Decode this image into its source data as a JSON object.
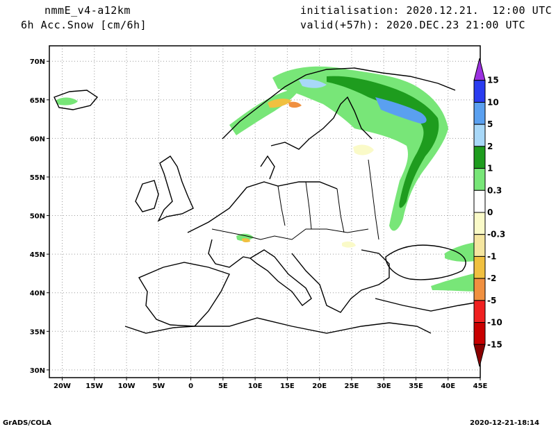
{
  "header": {
    "model": "nmmE_v4-a12km",
    "variable": "6h Acc.Snow [cm/6h]",
    "init": "initialisation: 2020.12.21.  12:00 UTC",
    "valid": "valid(+57h): 2020.DEC.23 21:00 UTC"
  },
  "footer": {
    "left": "GrADS/COLA",
    "right": "2020-12-21-18:14"
  },
  "axes": {
    "lon_labels": [
      "20W",
      "15W",
      "10W",
      "5W",
      "0",
      "5E",
      "10E",
      "15E",
      "20E",
      "25E",
      "30E",
      "35E",
      "40E",
      "45E"
    ],
    "lat_labels": [
      "70N",
      "65N",
      "60N",
      "55N",
      "50N",
      "45N",
      "40N",
      "35N",
      "30N"
    ]
  },
  "colorbar": {
    "labels": [
      "15",
      "10",
      "5",
      "2",
      "1",
      "0.3",
      "0",
      "-0.3",
      "-1",
      "-2",
      "-5",
      "-10",
      "-15"
    ],
    "colors": [
      "#9b30e0",
      "#2a3cf0",
      "#5aa0f0",
      "#a8d8f8",
      "#1e9c1e",
      "#78e678",
      "#ffffff",
      "#fafac8",
      "#f5e6a0",
      "#f0c040",
      "#f09040",
      "#f02020",
      "#c80000",
      "#8a0000"
    ]
  }
}
